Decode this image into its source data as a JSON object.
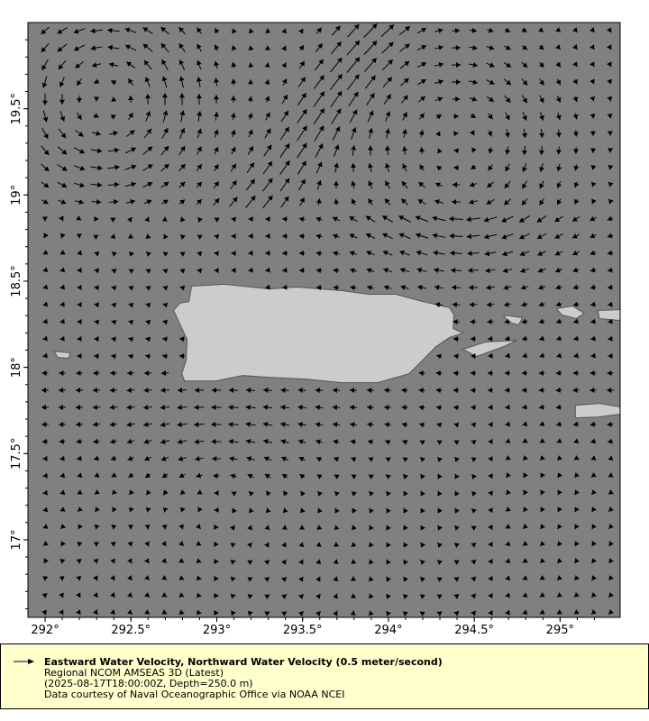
{
  "map": {
    "type": "vector-field",
    "lon_range": [
      291.9,
      295.35
    ],
    "lat_range": [
      16.55,
      20.0
    ],
    "x_ticks": [
      {
        "v": 292,
        "label": "292°"
      },
      {
        "v": 292.5,
        "label": "292.5°"
      },
      {
        "v": 293,
        "label": "293°"
      },
      {
        "v": 293.5,
        "label": "293.5°"
      },
      {
        "v": 294,
        "label": "294°"
      },
      {
        "v": 294.5,
        "label": "294.5°"
      },
      {
        "v": 295,
        "label": "295°"
      }
    ],
    "y_ticks": [
      {
        "v": 17,
        "label": "17°"
      },
      {
        "v": 17.5,
        "label": "17.5°"
      },
      {
        "v": 18,
        "label": "18°"
      },
      {
        "v": 18.5,
        "label": "18.5°"
      },
      {
        "v": 19,
        "label": "19°"
      },
      {
        "v": 19.5,
        "label": "19.5°"
      }
    ],
    "reference_vector_mps": 0.5,
    "colors": {
      "ocean": "#808080",
      "land": "#cccccc",
      "coast": "#555555",
      "arrow": "#000000",
      "legend_bg": "#ffffcc"
    },
    "land": [
      {
        "name": "Puerto Rico",
        "lonlat": [
          [
            292.853,
            18.471
          ],
          [
            293.047,
            18.482
          ],
          [
            293.309,
            18.455
          ],
          [
            293.466,
            18.466
          ],
          [
            293.728,
            18.445
          ],
          [
            293.885,
            18.424
          ],
          [
            294.042,
            18.424
          ],
          [
            294.199,
            18.382
          ],
          [
            294.356,
            18.346
          ],
          [
            294.382,
            18.304
          ],
          [
            294.377,
            18.225
          ],
          [
            294.435,
            18.199
          ],
          [
            294.356,
            18.173
          ],
          [
            294.277,
            18.12
          ],
          [
            294.199,
            18.042
          ],
          [
            294.12,
            17.963
          ],
          [
            293.937,
            17.911
          ],
          [
            293.728,
            17.911
          ],
          [
            293.518,
            17.932
          ],
          [
            293.309,
            17.942
          ],
          [
            293.152,
            17.953
          ],
          [
            292.995,
            17.921
          ],
          [
            292.812,
            17.921
          ],
          [
            292.796,
            17.963
          ],
          [
            292.822,
            18.042
          ],
          [
            292.827,
            18.162
          ],
          [
            292.785,
            18.251
          ],
          [
            292.749,
            18.33
          ],
          [
            292.785,
            18.372
          ],
          [
            292.838,
            18.382
          ]
        ]
      },
      {
        "name": "Vieques",
        "lonlat": [
          [
            294.435,
            18.105
          ],
          [
            294.565,
            18.147
          ],
          [
            294.749,
            18.157
          ],
          [
            294.67,
            18.12
          ],
          [
            294.513,
            18.063
          ]
        ]
      },
      {
        "name": "Culebra",
        "lonlat": [
          [
            294.67,
            18.304
          ],
          [
            294.78,
            18.288
          ],
          [
            294.759,
            18.246
          ],
          [
            294.7,
            18.262
          ]
        ]
      },
      {
        "name": "St Thomas",
        "lonlat": [
          [
            294.979,
            18.34
          ],
          [
            295.073,
            18.356
          ],
          [
            295.141,
            18.314
          ],
          [
            295.094,
            18.283
          ],
          [
            295.01,
            18.304
          ]
        ]
      },
      {
        "name": "St John",
        "lonlat": [
          [
            295.22,
            18.33
          ],
          [
            295.35,
            18.335
          ],
          [
            295.35,
            18.272
          ],
          [
            295.23,
            18.283
          ]
        ]
      },
      {
        "name": "St Croix",
        "lonlat": [
          [
            295.089,
            17.78
          ],
          [
            295.23,
            17.791
          ],
          [
            295.35,
            17.77
          ],
          [
            295.35,
            17.728
          ],
          [
            295.22,
            17.712
          ],
          [
            295.089,
            17.707
          ]
        ]
      },
      {
        "name": "Mona",
        "lonlat": [
          [
            292.052,
            18.094
          ],
          [
            292.147,
            18.084
          ],
          [
            292.136,
            18.052
          ],
          [
            292.073,
            18.058
          ]
        ]
      }
    ]
  },
  "legend": {
    "title": "Eastward Water Velocity, Northward Water Velocity (0.5 meter/second)",
    "dataset": "Regional NCOM AMSEAS 3D (Latest)",
    "constraints": "(2025-08-17T18:00:00Z, Depth=250.0 m)",
    "credit": "Data courtesy of Naval Oceanographic Office via NOAA NCEI"
  }
}
